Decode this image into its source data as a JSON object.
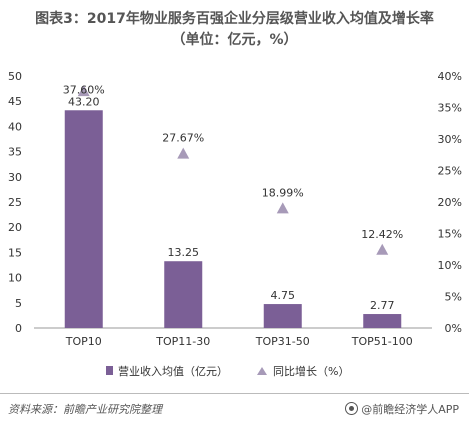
{
  "chart_data": {
    "type": "bar",
    "title": "图表3：2017年物业服务百强企业分层级营业收入均值及增长率",
    "subtitle": "（单位：亿元，%）",
    "categories": [
      "TOP10",
      "TOP11-30",
      "TOP31-50",
      "TOP51-100"
    ],
    "series": [
      {
        "name": "营业收入均值（亿元）",
        "type": "bar",
        "axis": "left",
        "values": [
          43.2,
          13.25,
          4.75,
          2.77
        ],
        "labels": [
          "43.20",
          "13.25",
          "4.75",
          "2.77"
        ],
        "color": "#7b5f96"
      },
      {
        "name": "同比增长（%）",
        "type": "scatter",
        "marker": "triangle",
        "axis": "right",
        "values": [
          37.6,
          27.67,
          18.99,
          12.42
        ],
        "labels": [
          "37.60%",
          "27.67%",
          "18.99%",
          "12.42%"
        ],
        "color": "#a79ab8"
      }
    ],
    "ylim_left": [
      0,
      50
    ],
    "yticks_left": [
      "0",
      "5",
      "10",
      "15",
      "20",
      "25",
      "30",
      "35",
      "40",
      "45",
      "50"
    ],
    "ylim_right": [
      0,
      40
    ],
    "yticks_right": [
      "0%",
      "5%",
      "10%",
      "15%",
      "20%",
      "25%",
      "30%",
      "35%",
      "40%"
    ],
    "grid": false,
    "legend_position": "bottom"
  },
  "footer": {
    "source": "资料来源：前瞻产业研究院整理",
    "brand": "@前瞻经济学人APP"
  }
}
